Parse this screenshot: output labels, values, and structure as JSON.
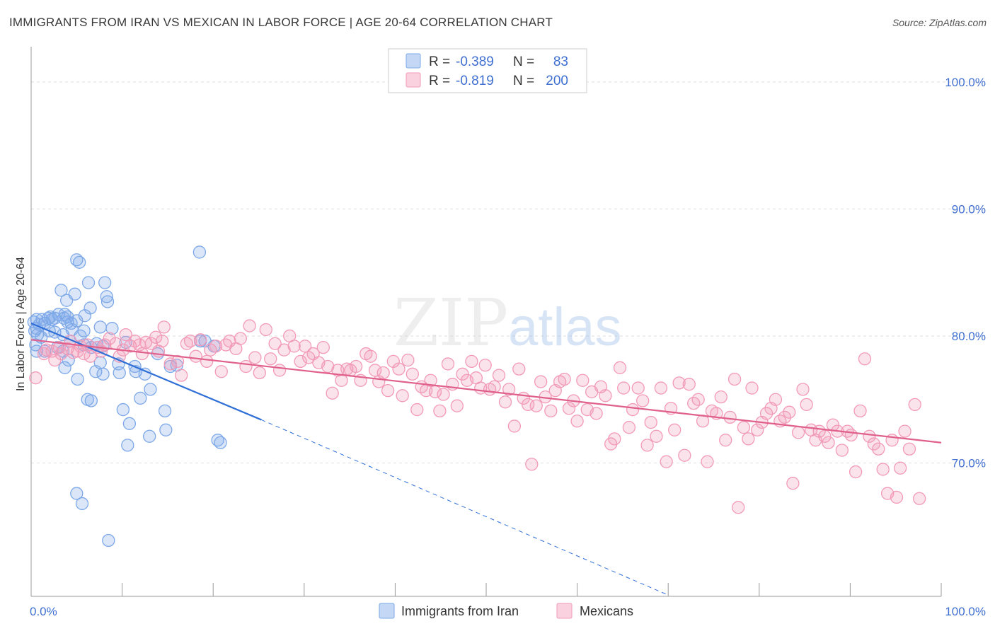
{
  "title": "IMMIGRANTS FROM IRAN VS MEXICAN IN LABOR FORCE | AGE 20-64 CORRELATION CHART",
  "source": "Source: ZipAtlas.com",
  "watermark": {
    "zip": "ZIP",
    "atlas": "atlas"
  },
  "legend": {
    "rows": [
      {
        "r_label": "R =",
        "r_value": "-0.389",
        "n_label": "N =",
        "n_value": "83",
        "color": "#7da8e8"
      },
      {
        "r_label": "R =",
        "r_value": "-0.819",
        "n_label": "N =",
        "n_value": "200",
        "color": "#f29ab8"
      }
    ]
  },
  "bottom_legend": [
    {
      "label": "Immigrants from Iran",
      "color": "#7da8e8"
    },
    {
      "label": "Mexicans",
      "color": "#f29ab8"
    }
  ],
  "chart_data": {
    "type": "scatter",
    "ylabel": "In Labor Force | Age 20-64",
    "xlabel": "",
    "xlim": [
      0,
      100
    ],
    "ylim": [
      59.5,
      103
    ],
    "x_tick_labels": [
      {
        "value": 0,
        "label": "0.0%"
      },
      {
        "value": 100,
        "label": "100.0%"
      }
    ],
    "y_tick_labels": [
      {
        "value": 70,
        "label": "70.0%"
      },
      {
        "value": 80,
        "label": "80.0%"
      },
      {
        "value": 90,
        "label": "90.0%"
      },
      {
        "value": 100,
        "label": "100.0%"
      }
    ],
    "grid": true,
    "legend_position": "top-center",
    "series": [
      {
        "name": "Immigrants from Iran",
        "color": "#7da8e8",
        "line_color": "#2f6fd6",
        "trend": {
          "x": [
            0,
            25.3
          ],
          "y": [
            81.0,
            73.4
          ],
          "dashed_to": [
            70,
            59.6
          ]
        },
        "points": [
          [
            0.3,
            81.1
          ],
          [
            0.4,
            80.4
          ],
          [
            0.5,
            79.3
          ],
          [
            0.6,
            80.6
          ],
          [
            0.6,
            81.3
          ],
          [
            0.7,
            80.1
          ],
          [
            0.9,
            80.9
          ],
          [
            1.2,
            81.3
          ],
          [
            1.5,
            81.0
          ],
          [
            1.5,
            78.8
          ],
          [
            1.9,
            81.4
          ],
          [
            2.0,
            80.4
          ],
          [
            2.1,
            81.5
          ],
          [
            2.3,
            81.3
          ],
          [
            2.6,
            81.4
          ],
          [
            2.6,
            80.3
          ],
          [
            2.9,
            79.1
          ],
          [
            3.0,
            81.7
          ],
          [
            3.3,
            83.6
          ],
          [
            3.5,
            80.1
          ],
          [
            3.5,
            78.8
          ],
          [
            3.6,
            81.4
          ],
          [
            3.7,
            81.7
          ],
          [
            3.7,
            77.5
          ],
          [
            3.9,
            82.8
          ],
          [
            4.0,
            81.5
          ],
          [
            4.0,
            81.1
          ],
          [
            4.1,
            78.1
          ],
          [
            4.3,
            79.6
          ],
          [
            4.4,
            81.0
          ],
          [
            4.5,
            80.5
          ],
          [
            4.8,
            83.3
          ],
          [
            5.0,
            67.6
          ],
          [
            5.0,
            81.2
          ],
          [
            5.0,
            86.0
          ],
          [
            5.1,
            76.6
          ],
          [
            5.3,
            85.8
          ],
          [
            5.4,
            80.0
          ],
          [
            5.6,
            66.8
          ],
          [
            5.8,
            79.3
          ],
          [
            5.8,
            80.4
          ],
          [
            5.9,
            81.6
          ],
          [
            6.2,
            75.0
          ],
          [
            6.3,
            84.2
          ],
          [
            6.5,
            82.2
          ],
          [
            6.6,
            74.9
          ],
          [
            6.6,
            79.1
          ],
          [
            7.1,
            77.2
          ],
          [
            7.2,
            79.4
          ],
          [
            7.6,
            80.7
          ],
          [
            7.6,
            77.9
          ],
          [
            7.9,
            77.0
          ],
          [
            7.9,
            79.2
          ],
          [
            8.1,
            84.2
          ],
          [
            8.3,
            83.1
          ],
          [
            8.4,
            82.7
          ],
          [
            8.5,
            63.9
          ],
          [
            8.9,
            80.6
          ],
          [
            9.6,
            77.8
          ],
          [
            9.7,
            77.1
          ],
          [
            10.1,
            74.2
          ],
          [
            10.4,
            79.5
          ],
          [
            10.6,
            71.4
          ],
          [
            10.8,
            73.1
          ],
          [
            11.4,
            77.6
          ],
          [
            11.5,
            77.2
          ],
          [
            12.0,
            75.1
          ],
          [
            12.5,
            77.0
          ],
          [
            13.0,
            72.1
          ],
          [
            13.1,
            75.8
          ],
          [
            13.9,
            78.6
          ],
          [
            14.7,
            74.1
          ],
          [
            14.8,
            72.6
          ],
          [
            15.3,
            77.6
          ],
          [
            16.0,
            77.7
          ],
          [
            18.5,
            86.6
          ],
          [
            18.6,
            79.6
          ],
          [
            19.1,
            79.6
          ],
          [
            20.1,
            79.2
          ],
          [
            20.5,
            71.8
          ],
          [
            20.8,
            71.6
          ],
          [
            0.6,
            78.8
          ],
          [
            1.1,
            79.9
          ]
        ]
      },
      {
        "name": "Mexicans",
        "color": "#f29ab8",
        "line_color": "#e0608c",
        "trend": {
          "x": [
            0,
            100
          ],
          "y": [
            79.7,
            71.6
          ]
        },
        "points": [
          [
            0.5,
            76.7
          ],
          [
            1.4,
            78.6
          ],
          [
            1.7,
            78.9
          ],
          [
            2.3,
            78.8
          ],
          [
            2.6,
            78.1
          ],
          [
            3.1,
            79.1
          ],
          [
            3.3,
            78.6
          ],
          [
            4.0,
            79.0
          ],
          [
            4.3,
            79.6
          ],
          [
            4.6,
            78.7
          ],
          [
            5.1,
            78.8
          ],
          [
            5.4,
            79.2
          ],
          [
            5.8,
            78.6
          ],
          [
            6.2,
            79.3
          ],
          [
            6.5,
            78.4
          ],
          [
            7.3,
            79.1
          ],
          [
            7.7,
            78.8
          ],
          [
            8.1,
            79.3
          ],
          [
            8.6,
            79.8
          ],
          [
            9.3,
            79.4
          ],
          [
            9.7,
            78.4
          ],
          [
            10.1,
            78.9
          ],
          [
            10.4,
            80.1
          ],
          [
            10.9,
            79.2
          ],
          [
            11.4,
            79.6
          ],
          [
            11.9,
            79.3
          ],
          [
            12.2,
            78.6
          ],
          [
            12.6,
            79.5
          ],
          [
            13.2,
            79.4
          ],
          [
            13.7,
            79.9
          ],
          [
            14.0,
            78.8
          ],
          [
            14.4,
            79.6
          ],
          [
            14.6,
            80.7
          ],
          [
            15.3,
            77.8
          ],
          [
            16.1,
            78.0
          ],
          [
            16.5,
            76.9
          ],
          [
            17.1,
            79.4
          ],
          [
            17.5,
            79.6
          ],
          [
            18.1,
            78.4
          ],
          [
            18.6,
            79.7
          ],
          [
            19.3,
            78.0
          ],
          [
            19.7,
            78.9
          ],
          [
            20.3,
            79.2
          ],
          [
            20.9,
            77.2
          ],
          [
            21.4,
            79.3
          ],
          [
            21.8,
            79.6
          ],
          [
            22.5,
            79.0
          ],
          [
            23.0,
            79.8
          ],
          [
            23.6,
            77.6
          ],
          [
            24.0,
            80.8
          ],
          [
            24.6,
            78.3
          ],
          [
            25.1,
            77.1
          ],
          [
            25.8,
            80.5
          ],
          [
            26.3,
            78.2
          ],
          [
            26.8,
            79.4
          ],
          [
            27.3,
            77.3
          ],
          [
            27.8,
            78.9
          ],
          [
            28.4,
            80.0
          ],
          [
            28.9,
            79.2
          ],
          [
            29.6,
            78.0
          ],
          [
            30.1,
            79.2
          ],
          [
            30.5,
            78.3
          ],
          [
            31.0,
            78.6
          ],
          [
            31.6,
            77.9
          ],
          [
            32.1,
            79.1
          ],
          [
            32.6,
            77.6
          ],
          [
            33.1,
            75.5
          ],
          [
            33.7,
            77.3
          ],
          [
            34.1,
            76.5
          ],
          [
            34.7,
            77.4
          ],
          [
            35.1,
            77.3
          ],
          [
            35.7,
            77.6
          ],
          [
            36.2,
            76.5
          ],
          [
            36.8,
            78.6
          ],
          [
            37.3,
            78.4
          ],
          [
            37.8,
            77.3
          ],
          [
            38.2,
            76.4
          ],
          [
            38.7,
            77.1
          ],
          [
            39.2,
            75.7
          ],
          [
            39.8,
            78.0
          ],
          [
            40.4,
            77.4
          ],
          [
            40.8,
            75.3
          ],
          [
            41.4,
            78.1
          ],
          [
            41.9,
            77.0
          ],
          [
            42.4,
            74.2
          ],
          [
            42.9,
            76.0
          ],
          [
            43.4,
            75.7
          ],
          [
            43.9,
            76.5
          ],
          [
            44.4,
            75.6
          ],
          [
            44.9,
            74.1
          ],
          [
            45.3,
            75.4
          ],
          [
            45.8,
            77.8
          ],
          [
            46.3,
            76.2
          ],
          [
            46.8,
            74.5
          ],
          [
            47.4,
            77.0
          ],
          [
            47.9,
            76.5
          ],
          [
            48.4,
            78.0
          ],
          [
            48.9,
            76.7
          ],
          [
            49.4,
            75.9
          ],
          [
            49.9,
            77.7
          ],
          [
            50.4,
            75.8
          ],
          [
            50.9,
            76.0
          ],
          [
            51.4,
            76.9
          ],
          [
            52.1,
            74.8
          ],
          [
            52.5,
            75.8
          ],
          [
            53.1,
            72.9
          ],
          [
            53.6,
            77.4
          ],
          [
            54.1,
            75.1
          ],
          [
            54.6,
            74.6
          ],
          [
            55.0,
            69.9
          ],
          [
            55.5,
            74.5
          ],
          [
            56.0,
            76.4
          ],
          [
            56.5,
            75.2
          ],
          [
            57.1,
            74.1
          ],
          [
            57.6,
            75.7
          ],
          [
            58.1,
            76.4
          ],
          [
            58.6,
            76.6
          ],
          [
            59.1,
            74.3
          ],
          [
            59.6,
            74.9
          ],
          [
            60.0,
            73.3
          ],
          [
            60.6,
            76.5
          ],
          [
            61.1,
            74.2
          ],
          [
            61.6,
            75.6
          ],
          [
            62.1,
            73.9
          ],
          [
            62.6,
            76.0
          ],
          [
            63.1,
            75.3
          ],
          [
            63.7,
            71.5
          ],
          [
            64.1,
            71.9
          ],
          [
            64.7,
            77.5
          ],
          [
            65.1,
            75.9
          ],
          [
            65.7,
            72.8
          ],
          [
            66.1,
            74.2
          ],
          [
            66.7,
            75.9
          ],
          [
            67.2,
            74.9
          ],
          [
            67.7,
            71.4
          ],
          [
            68.1,
            73.2
          ],
          [
            68.7,
            72.1
          ],
          [
            69.2,
            75.9
          ],
          [
            69.8,
            70.1
          ],
          [
            70.3,
            74.3
          ],
          [
            70.7,
            72.6
          ],
          [
            71.2,
            76.3
          ],
          [
            71.8,
            70.6
          ],
          [
            72.3,
            76.2
          ],
          [
            72.8,
            74.7
          ],
          [
            73.3,
            75.0
          ],
          [
            73.8,
            73.3
          ],
          [
            74.3,
            70.1
          ],
          [
            74.8,
            74.1
          ],
          [
            75.3,
            73.9
          ],
          [
            75.8,
            75.2
          ],
          [
            76.3,
            71.8
          ],
          [
            76.8,
            73.6
          ],
          [
            77.3,
            76.6
          ],
          [
            77.7,
            66.5
          ],
          [
            78.3,
            72.8
          ],
          [
            78.8,
            71.9
          ],
          [
            79.2,
            75.9
          ],
          [
            79.8,
            72.6
          ],
          [
            80.3,
            73.2
          ],
          [
            80.8,
            73.9
          ],
          [
            81.3,
            74.3
          ],
          [
            81.8,
            75.0
          ],
          [
            82.3,
            73.3
          ],
          [
            82.8,
            73.6
          ],
          [
            83.3,
            74.0
          ],
          [
            83.7,
            68.4
          ],
          [
            84.3,
            72.4
          ],
          [
            84.8,
            75.8
          ],
          [
            85.2,
            74.6
          ],
          [
            85.7,
            72.6
          ],
          [
            86.2,
            71.8
          ],
          [
            86.6,
            72.5
          ],
          [
            87.2,
            72.1
          ],
          [
            87.6,
            71.6
          ],
          [
            88.1,
            73.0
          ],
          [
            88.6,
            72.5
          ],
          [
            89.1,
            71.0
          ],
          [
            89.7,
            72.5
          ],
          [
            90.1,
            72.2
          ],
          [
            90.6,
            69.3
          ],
          [
            91.1,
            74.1
          ],
          [
            91.6,
            78.2
          ],
          [
            92.1,
            72.1
          ],
          [
            92.6,
            71.5
          ],
          [
            93.1,
            71.1
          ],
          [
            93.6,
            69.5
          ],
          [
            94.1,
            67.6
          ],
          [
            94.6,
            71.8
          ],
          [
            95.1,
            67.3
          ],
          [
            95.5,
            69.6
          ],
          [
            96.0,
            72.5
          ],
          [
            96.5,
            71.1
          ],
          [
            97.1,
            74.6
          ],
          [
            97.6,
            67.2
          ]
        ]
      }
    ]
  }
}
